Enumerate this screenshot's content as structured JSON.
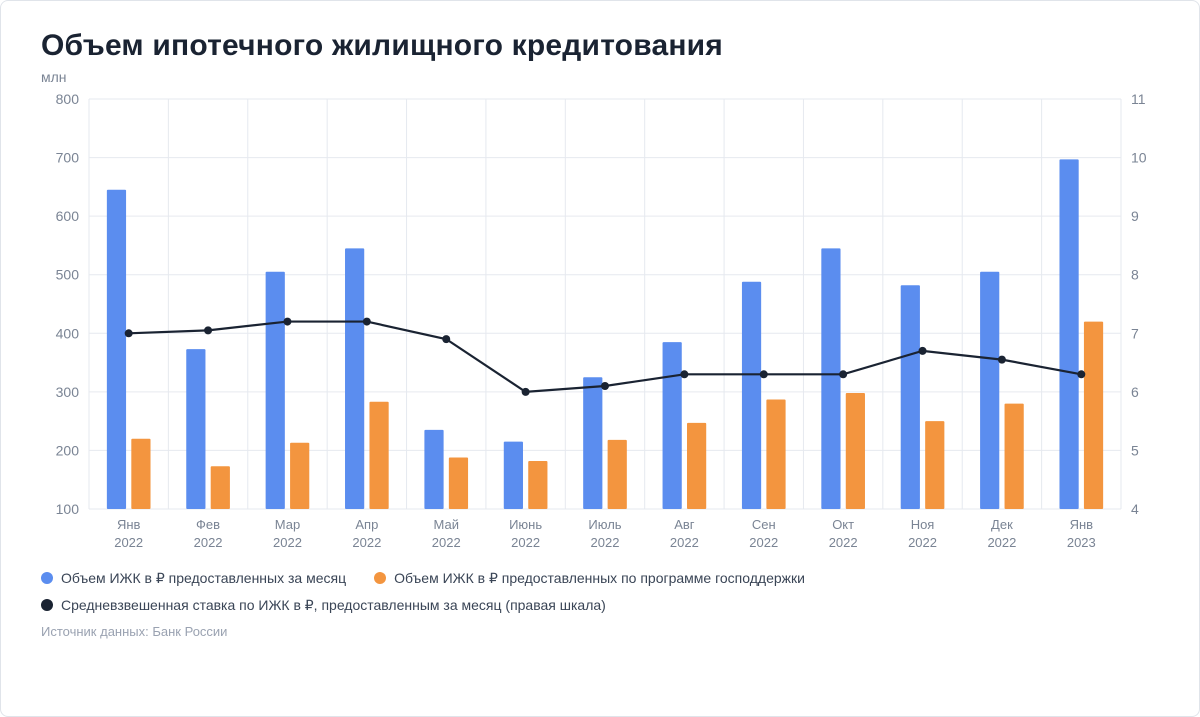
{
  "title": "Объем ипотечного жилищного кредитования",
  "unit_label": "млн",
  "source": "Источник данных: Банк России",
  "chart": {
    "type": "bar+line",
    "background_color": "#ffffff",
    "grid_color": "#e6e9ef",
    "axis_text_color": "#7a8494",
    "axis_fontsize": 14,
    "title_fontsize": 30,
    "categories": [
      {
        "l1": "Янв",
        "l2": "2022"
      },
      {
        "l1": "Фев",
        "l2": "2022"
      },
      {
        "l1": "Мар",
        "l2": "2022"
      },
      {
        "l1": "Апр",
        "l2": "2022"
      },
      {
        "l1": "Май",
        "l2": "2022"
      },
      {
        "l1": "Июнь",
        "l2": "2022"
      },
      {
        "l1": "Июль",
        "l2": "2022"
      },
      {
        "l1": "Авг",
        "l2": "2022"
      },
      {
        "l1": "Сен",
        "l2": "2022"
      },
      {
        "l1": "Окт",
        "l2": "2022"
      },
      {
        "l1": "Ноя",
        "l2": "2022"
      },
      {
        "l1": "Дек",
        "l2": "2022"
      },
      {
        "l1": "Янв",
        "l2": "2023"
      }
    ],
    "y_left": {
      "min": 100,
      "max": 800,
      "step": 100
    },
    "y_right": {
      "min": 4,
      "max": 11,
      "step": 1
    },
    "baseline_value": 100,
    "series_bars": [
      {
        "name": "Объем ИЖК в ₽ предоставленных за месяц",
        "color": "#5b8def",
        "values": [
          645,
          373,
          505,
          545,
          235,
          215,
          325,
          385,
          488,
          545,
          482,
          505,
          697
        ]
      },
      {
        "name": "Объем ИЖК в ₽ предоставленных по программе господдержки",
        "color": "#f3953f",
        "values": [
          220,
          173,
          213,
          283,
          188,
          182,
          218,
          247,
          287,
          298,
          250,
          280,
          420
        ]
      }
    ],
    "series_line": {
      "name": "Средневзвешенная ставка по ИЖК в ₽, предоставленным за месяц (правая шкала)",
      "color": "#1a2332",
      "line_width": 2.2,
      "marker_radius": 4,
      "values": [
        7.0,
        7.05,
        7.2,
        7.2,
        6.9,
        6.0,
        6.1,
        6.3,
        6.3,
        6.3,
        6.7,
        6.55,
        6.3
      ]
    },
    "bar": {
      "group_width": 0.55,
      "gap_within": 0.12
    }
  },
  "legend": {
    "items": [
      {
        "color": "#5b8def",
        "label": "Объем ИЖК в ₽ предоставленных за месяц"
      },
      {
        "color": "#f3953f",
        "label": "Объем ИЖК в ₽ предоставленных по программе господдержки"
      },
      {
        "color": "#1a2332",
        "label": "Средневзвешенная ставка по ИЖК в ₽, предоставленным за месяц (правая шкала)"
      }
    ]
  }
}
